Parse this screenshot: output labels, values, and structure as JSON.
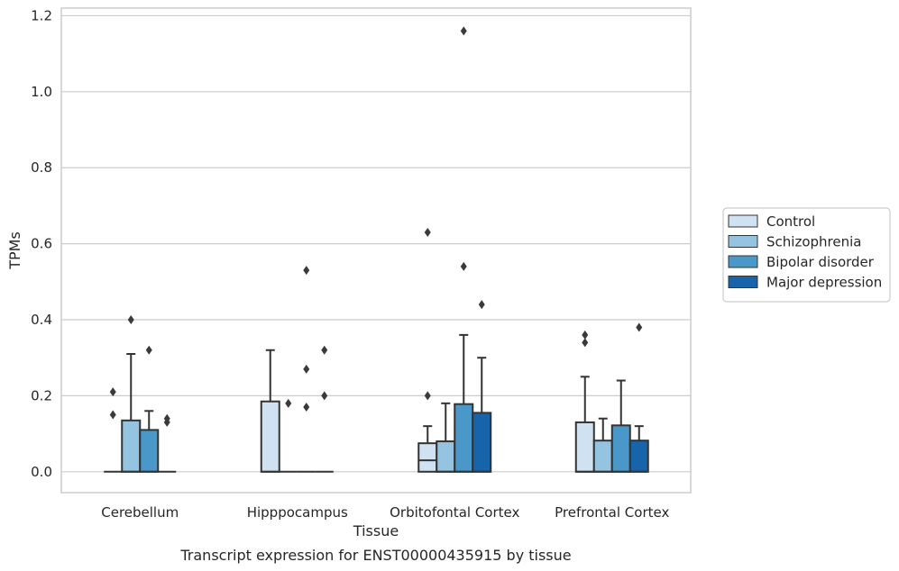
{
  "caption": "Transcript expression for ENST00000435915 by tissue",
  "chart_data": {
    "type": "box",
    "xlabel": "Tissue",
    "ylabel": "TPMs",
    "ylim": [
      -0.055,
      1.22
    ],
    "yticks": [
      "0.0",
      "0.2",
      "0.4",
      "0.6",
      "0.8",
      "1.0",
      "1.2"
    ],
    "grid": "horizontal",
    "legend_position": "right",
    "categories": [
      "Cerebellum",
      "Hipppocampus",
      "Orbitofontal Cortex",
      "Prefrontal Cortex"
    ],
    "series": [
      {
        "name": "Control",
        "color": "#d0e1f2",
        "boxes": [
          {
            "q1": 0,
            "median": 0,
            "q3": 0,
            "whisker_low": 0,
            "whisker_high": 0,
            "outliers": [
              0.21,
              0.15
            ]
          },
          {
            "q1": 0,
            "median": 0,
            "q3": 0.185,
            "whisker_low": 0,
            "whisker_high": 0.32,
            "outliers": []
          },
          {
            "q1": 0,
            "median": 0.03,
            "q3": 0.075,
            "whisker_low": 0,
            "whisker_high": 0.12,
            "outliers": [
              0.2,
              0.63
            ]
          },
          {
            "q1": 0,
            "median": 0,
            "q3": 0.13,
            "whisker_low": 0,
            "whisker_high": 0.25,
            "outliers": [
              0.34,
              0.36
            ]
          }
        ]
      },
      {
        "name": "Schizophrenia",
        "color": "#94c4df",
        "boxes": [
          {
            "q1": 0,
            "median": 0,
            "q3": 0.135,
            "whisker_low": 0,
            "whisker_high": 0.31,
            "outliers": [
              0.4
            ]
          },
          {
            "q1": 0,
            "median": 0,
            "q3": 0,
            "whisker_low": 0,
            "whisker_high": 0,
            "outliers": [
              0.18
            ]
          },
          {
            "q1": 0,
            "median": 0,
            "q3": 0.08,
            "whisker_low": 0,
            "whisker_high": 0.18,
            "outliers": []
          },
          {
            "q1": 0,
            "median": 0,
            "q3": 0.082,
            "whisker_low": 0,
            "whisker_high": 0.14,
            "outliers": []
          }
        ]
      },
      {
        "name": "Bipolar disorder",
        "color": "#4a98c9",
        "boxes": [
          {
            "q1": 0,
            "median": 0,
            "q3": 0.11,
            "whisker_low": 0,
            "whisker_high": 0.16,
            "outliers": [
              0.32
            ]
          },
          {
            "q1": 0,
            "median": 0,
            "q3": 0,
            "whisker_low": 0,
            "whisker_high": 0,
            "outliers": [
              0.17,
              0.27,
              0.53
            ]
          },
          {
            "q1": 0,
            "median": 0,
            "q3": 0.178,
            "whisker_low": 0,
            "whisker_high": 0.36,
            "outliers": [
              0.54,
              1.16
            ]
          },
          {
            "q1": 0,
            "median": 0,
            "q3": 0.122,
            "whisker_low": 0,
            "whisker_high": 0.24,
            "outliers": []
          }
        ]
      },
      {
        "name": "Major depression",
        "color": "#1764ab",
        "boxes": [
          {
            "q1": 0,
            "median": 0,
            "q3": 0,
            "whisker_low": 0,
            "whisker_high": 0,
            "outliers": [
              0.13,
              0.14
            ]
          },
          {
            "q1": 0,
            "median": 0,
            "q3": 0,
            "whisker_low": 0,
            "whisker_high": 0,
            "outliers": [
              0.2,
              0.32
            ]
          },
          {
            "q1": 0,
            "median": 0,
            "q3": 0.155,
            "whisker_low": 0,
            "whisker_high": 0.3,
            "outliers": [
              0.44
            ]
          },
          {
            "q1": 0,
            "median": 0,
            "q3": 0.082,
            "whisker_low": 0,
            "whisker_high": 0.12,
            "outliers": [
              0.38
            ]
          }
        ]
      }
    ]
  }
}
